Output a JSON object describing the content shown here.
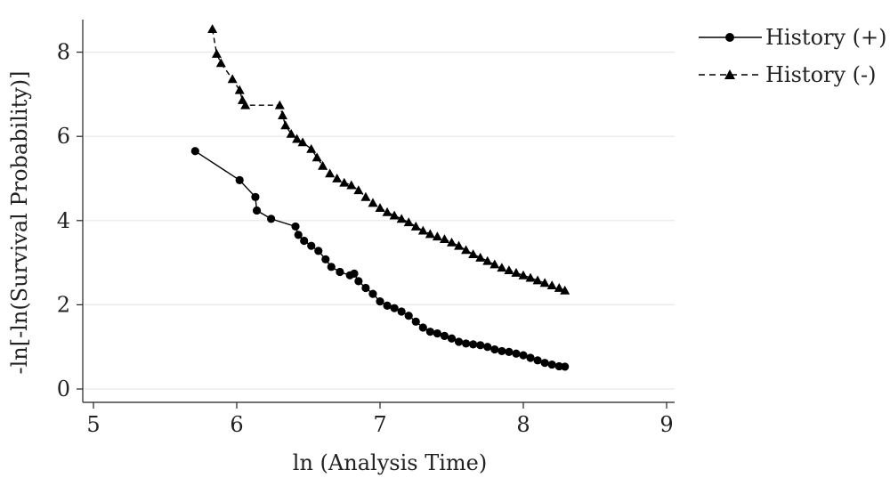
{
  "chart_data": {
    "type": "line",
    "title": "",
    "xlabel": "ln (Analysis Time)",
    "ylabel": "-ln[-ln(Survival Probability)]",
    "xlim": [
      4.95,
      9.05
    ],
    "ylim": [
      -0.2,
      8.8
    ],
    "xticks": [
      5,
      6,
      7,
      8,
      9
    ],
    "yticks": [
      0,
      2,
      4,
      6,
      8
    ],
    "grid": {
      "horizontal": true,
      "vertical": false,
      "color": "#e6e6e6"
    },
    "legend_position": "top-right, outside plot area",
    "series": [
      {
        "name": "History (+)",
        "line_style": "solid",
        "marker": "circle",
        "color": "#000000",
        "points": [
          [
            5.71,
            5.65
          ],
          [
            6.02,
            4.96
          ],
          [
            6.13,
            4.56
          ],
          [
            6.14,
            4.24
          ],
          [
            6.24,
            4.04
          ],
          [
            6.41,
            3.86
          ],
          [
            6.43,
            3.66
          ],
          [
            6.47,
            3.52
          ],
          [
            6.52,
            3.4
          ],
          [
            6.57,
            3.28
          ],
          [
            6.62,
            3.08
          ],
          [
            6.66,
            2.9
          ],
          [
            6.72,
            2.78
          ],
          [
            6.79,
            2.7
          ],
          [
            6.82,
            2.74
          ],
          [
            6.85,
            2.56
          ],
          [
            6.9,
            2.4
          ],
          [
            6.95,
            2.26
          ],
          [
            7.0,
            2.08
          ],
          [
            7.05,
            1.98
          ],
          [
            7.1,
            1.92
          ],
          [
            7.15,
            1.84
          ],
          [
            7.2,
            1.74
          ],
          [
            7.25,
            1.6
          ],
          [
            7.3,
            1.46
          ],
          [
            7.35,
            1.36
          ],
          [
            7.4,
            1.32
          ],
          [
            7.45,
            1.26
          ],
          [
            7.5,
            1.2
          ],
          [
            7.55,
            1.12
          ],
          [
            7.6,
            1.08
          ],
          [
            7.65,
            1.06
          ],
          [
            7.7,
            1.04
          ],
          [
            7.75,
            1.0
          ],
          [
            7.8,
            0.94
          ],
          [
            7.85,
            0.9
          ],
          [
            7.9,
            0.88
          ],
          [
            7.95,
            0.84
          ],
          [
            8.0,
            0.8
          ],
          [
            8.05,
            0.74
          ],
          [
            8.1,
            0.68
          ],
          [
            8.15,
            0.62
          ],
          [
            8.2,
            0.58
          ],
          [
            8.25,
            0.54
          ],
          [
            8.29,
            0.53
          ]
        ]
      },
      {
        "name": "History (-)",
        "line_style": "dashed",
        "marker": "triangle",
        "color": "#000000",
        "points": [
          [
            5.83,
            8.55
          ],
          [
            5.86,
            7.96
          ],
          [
            5.89,
            7.74
          ],
          [
            5.97,
            7.36
          ],
          [
            6.02,
            7.1
          ],
          [
            6.04,
            6.86
          ],
          [
            6.06,
            6.74
          ],
          [
            6.3,
            6.74
          ],
          [
            6.32,
            6.5
          ],
          [
            6.34,
            6.26
          ],
          [
            6.38,
            6.06
          ],
          [
            6.42,
            5.94
          ],
          [
            6.46,
            5.86
          ],
          [
            6.52,
            5.7
          ],
          [
            6.56,
            5.5
          ],
          [
            6.6,
            5.3
          ],
          [
            6.65,
            5.12
          ],
          [
            6.7,
            5.0
          ],
          [
            6.75,
            4.9
          ],
          [
            6.8,
            4.84
          ],
          [
            6.85,
            4.72
          ],
          [
            6.9,
            4.56
          ],
          [
            6.95,
            4.42
          ],
          [
            7.0,
            4.3
          ],
          [
            7.05,
            4.2
          ],
          [
            7.1,
            4.12
          ],
          [
            7.15,
            4.04
          ],
          [
            7.2,
            3.96
          ],
          [
            7.25,
            3.86
          ],
          [
            7.3,
            3.76
          ],
          [
            7.35,
            3.68
          ],
          [
            7.4,
            3.62
          ],
          [
            7.45,
            3.56
          ],
          [
            7.5,
            3.48
          ],
          [
            7.55,
            3.4
          ],
          [
            7.6,
            3.3
          ],
          [
            7.65,
            3.2
          ],
          [
            7.7,
            3.12
          ],
          [
            7.75,
            3.04
          ],
          [
            7.8,
            2.96
          ],
          [
            7.85,
            2.88
          ],
          [
            7.9,
            2.82
          ],
          [
            7.95,
            2.76
          ],
          [
            8.0,
            2.7
          ],
          [
            8.05,
            2.64
          ],
          [
            8.1,
            2.58
          ],
          [
            8.15,
            2.52
          ],
          [
            8.2,
            2.46
          ],
          [
            8.25,
            2.4
          ],
          [
            8.29,
            2.34
          ]
        ]
      }
    ]
  }
}
